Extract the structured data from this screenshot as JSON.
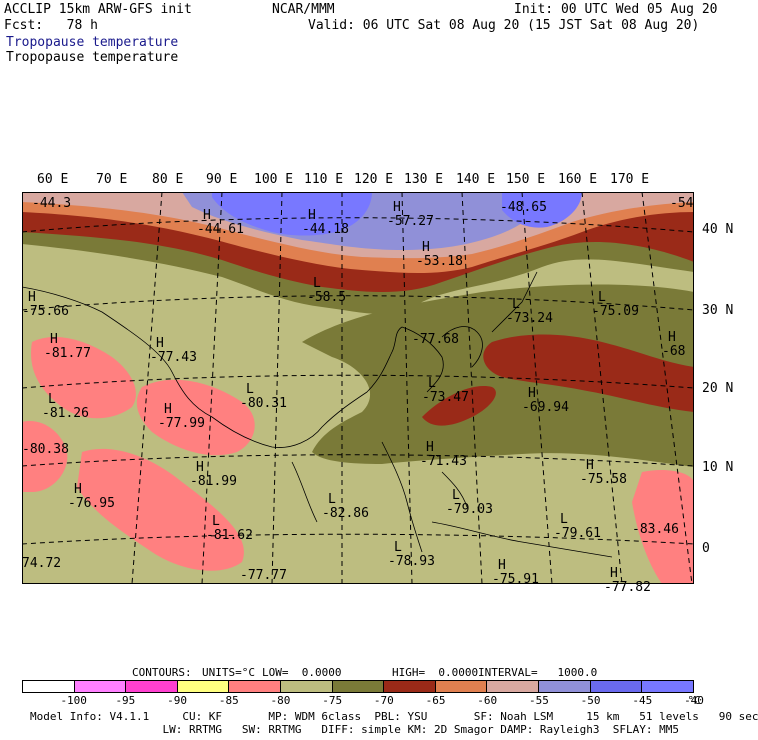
{
  "header": {
    "model": "ACCLIP 15km ARW-GFS init",
    "center": "NCAR/MMM",
    "init": "Init: 00 UTC Wed 05 Aug 20",
    "fcst": "Fcst:   78 h",
    "valid": "Valid: 06 UTC Sat 08 Aug 20 (15 JST Sat 08 Aug 20)",
    "field_title_1": "Tropopause temperature",
    "field_title_2": "Tropopause temperature"
  },
  "axes": {
    "lon_labels": [
      "60 E",
      "70 E",
      "80 E",
      "90 E",
      "100 E",
      "110 E",
      "120 E",
      "130 E",
      "140 E",
      "150 E",
      "160 E",
      "170 E"
    ],
    "lat_labels": [
      "40 N",
      "30 N",
      "20 N",
      "10 N",
      "0"
    ]
  },
  "map_labels": [
    {
      "hl": "",
      "val": "-44.3"
    },
    {
      "hl": "H",
      "val": "-44.61"
    },
    {
      "hl": "H",
      "val": "-44.18"
    },
    {
      "hl": "H",
      "val": "-57.27"
    },
    {
      "hl": "",
      "val": "-48.65"
    },
    {
      "hl": "",
      "val": "-54"
    },
    {
      "hl": "H",
      "val": "-53.18"
    },
    {
      "hl": "L",
      "val": "-58.5"
    },
    {
      "hl": "H",
      "val": "-75.66"
    },
    {
      "hl": "L",
      "val": "-73.24"
    },
    {
      "hl": "L",
      "val": "-75.09"
    },
    {
      "hl": "H",
      "val": "-81.77"
    },
    {
      "hl": "H",
      "val": "-77.43"
    },
    {
      "hl": "",
      "val": "-77.68"
    },
    {
      "hl": "H",
      "val": "-68"
    },
    {
      "hl": "L",
      "val": "-80.31"
    },
    {
      "hl": "L",
      "val": "-73.47"
    },
    {
      "hl": "H",
      "val": "-69.94"
    },
    {
      "hl": "L",
      "val": "-81.26"
    },
    {
      "hl": "H",
      "val": "-77.99"
    },
    {
      "hl": "H",
      "val": "-71.43"
    },
    {
      "hl": "",
      "val": "-80.38"
    },
    {
      "hl": "H",
      "val": "-81.99"
    },
    {
      "hl": "H",
      "val": "-75.58"
    },
    {
      "hl": "H",
      "val": "-76.95"
    },
    {
      "hl": "L",
      "val": "-82.86"
    },
    {
      "hl": "L",
      "val": "-79.03"
    },
    {
      "hl": "L",
      "val": "-79.61"
    },
    {
      "hl": "L",
      "val": "-81.62"
    },
    {
      "hl": "",
      "val": "-83.46"
    },
    {
      "hl": "L",
      "val": "-78.93"
    },
    {
      "hl": "H",
      "val": "-75.91"
    },
    {
      "hl": "",
      "val": "74.72"
    },
    {
      "hl": "",
      "val": "-77.77"
    },
    {
      "hl": "H",
      "val": "-77.82"
    }
  ],
  "contours": {
    "label": "CONTOURS:",
    "units": "UNITS=°C",
    "low": "LOW=  0.0000",
    "high": "HIGH=  0.0000",
    "interval": "INTERVAL=   1000.0"
  },
  "legend": {
    "colors": [
      "#ffffff",
      "#ff80ff",
      "#ff40d0",
      "#ffff80",
      "#ff8080",
      "#bdbd80",
      "#7a7a38",
      "#9a2a18",
      "#e08050",
      "#d8a8a0",
      "#9090d8",
      "#6a6aee",
      "#7878ff"
    ],
    "labels": [
      "-100",
      "-95",
      "-90",
      "-85",
      "-80",
      "-75",
      "-70",
      "-65",
      "-60",
      "-55",
      "-50",
      "-45",
      "-40"
    ],
    "unit": "°C"
  },
  "footer": {
    "line1": "Model Info: V4.1.1     CU: KF       MP: WDM 6class  PBL: YSU       SF: Noah LSM     15 km   51 levels   90 sec",
    "line2": "                    LW: RRTMG   SW: RRTMG   DIFF: simple KM: 2D Smagor DAMP: Rayleigh3  SFLAY: MM5"
  }
}
